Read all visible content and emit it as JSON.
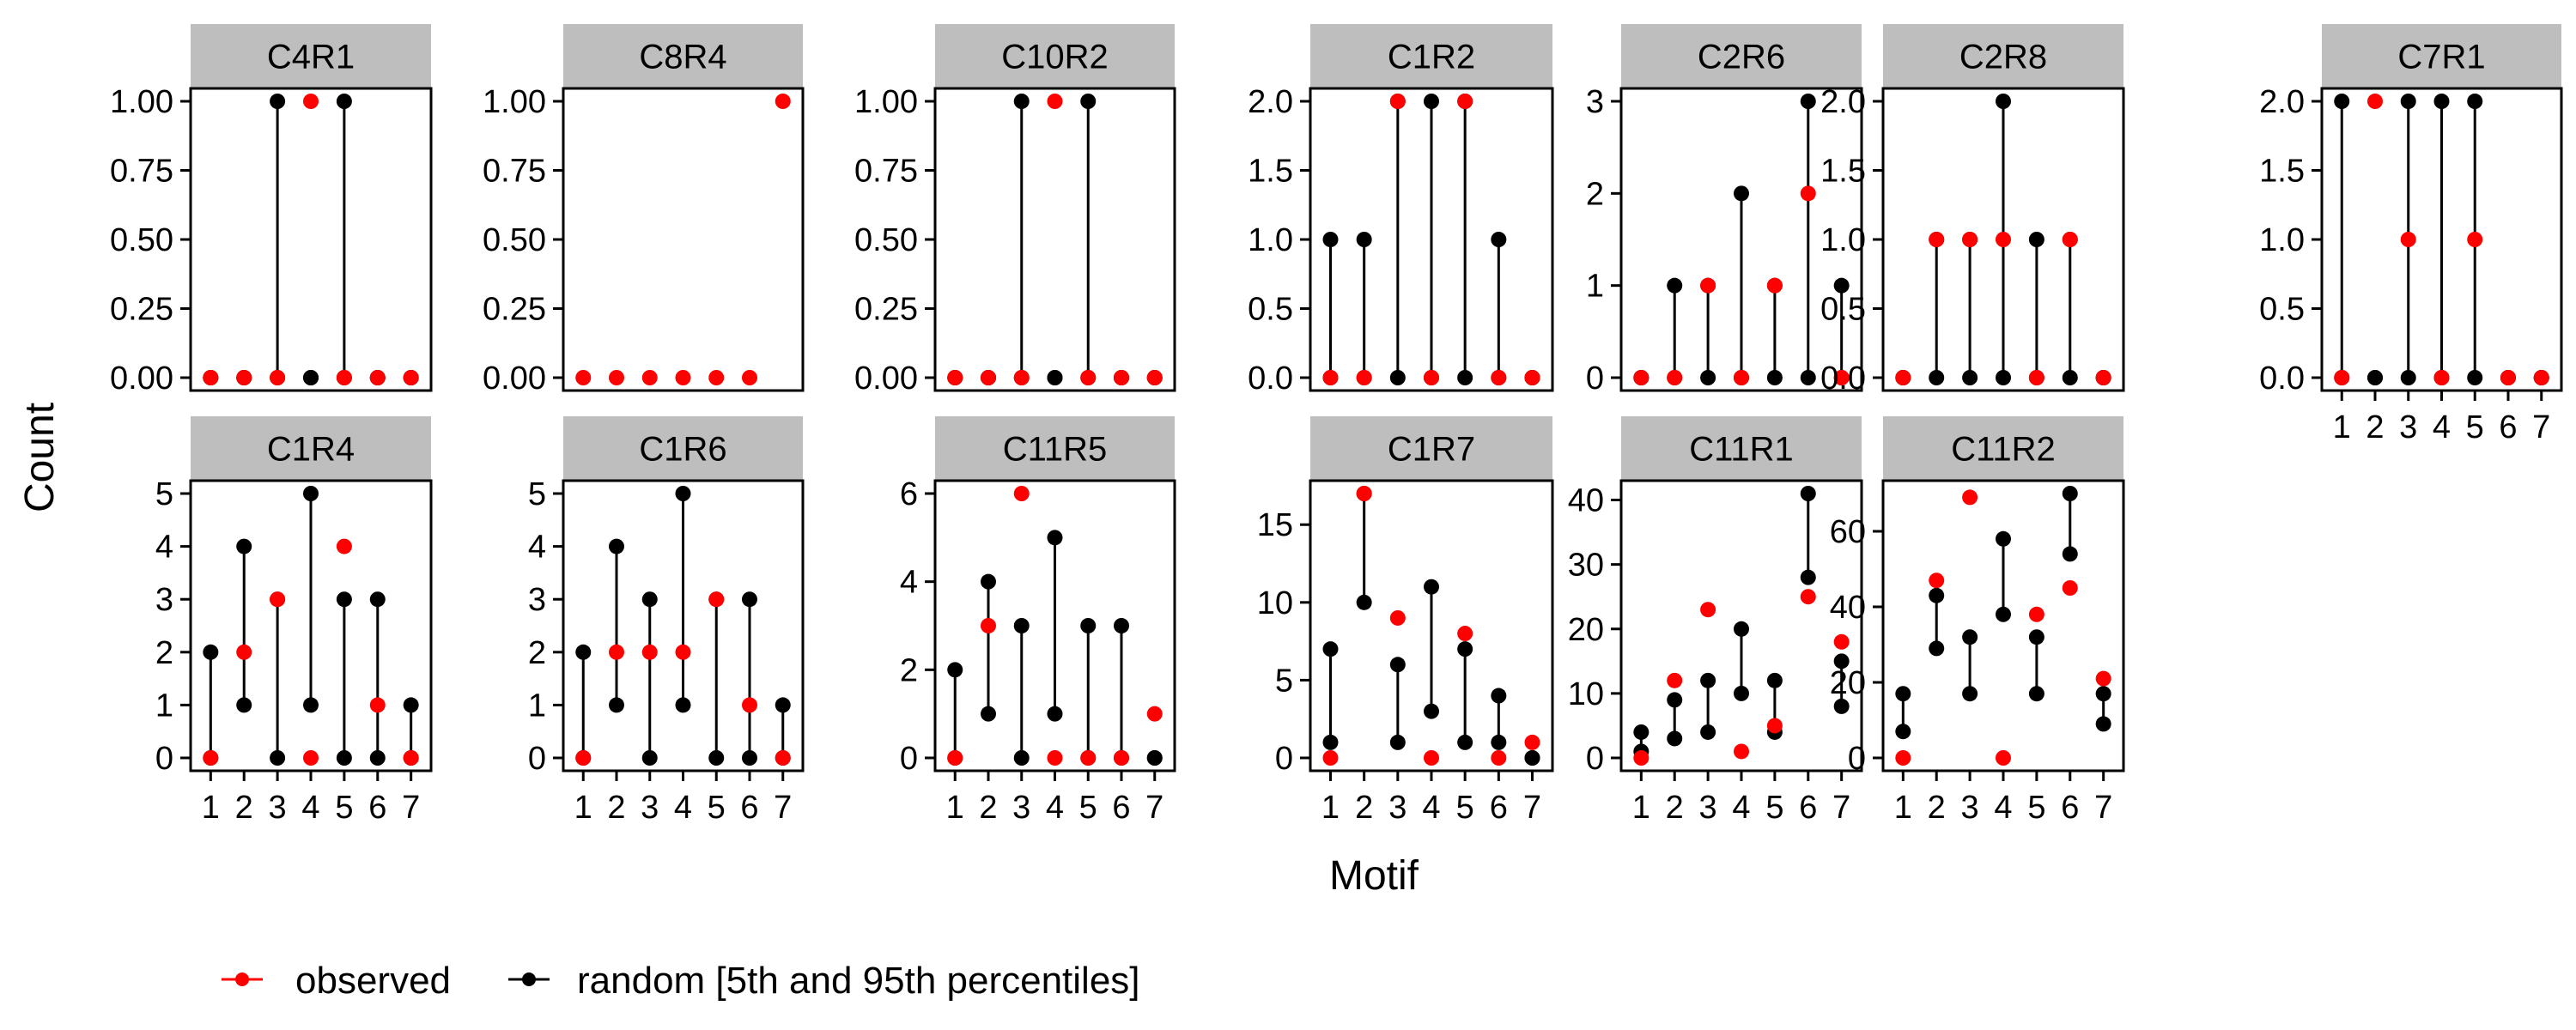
{
  "chart_data": {
    "type": "scatter",
    "ylabel": "Count",
    "xlabel": "Motif",
    "x_ticks": [
      "1",
      "2",
      "3",
      "4",
      "5",
      "6",
      "7"
    ],
    "legend": {
      "placement": "bottom-left",
      "items": [
        {
          "key": "observed",
          "label": "observed",
          "color": "#ff0000"
        },
        {
          "key": "random",
          "label": "random [5th and 95th percentiles]",
          "color": "#000000"
        }
      ]
    },
    "panels": [
      {
        "name": "C4R1",
        "row": 0,
        "col": 0,
        "ylim": [
          0,
          1
        ],
        "yticks": [
          "0.00",
          "0.25",
          "0.50",
          "0.75",
          "1.00"
        ],
        "show_x": false,
        "observed": [
          0,
          0,
          0,
          1,
          0,
          0,
          0
        ],
        "random_low": [
          0,
          0,
          0,
          0,
          0,
          0,
          0
        ],
        "random_high": [
          0,
          0,
          1,
          0,
          1,
          0,
          0
        ]
      },
      {
        "name": "C8R4",
        "row": 0,
        "col": 1,
        "ylim": [
          0,
          1
        ],
        "yticks": [
          "0.00",
          "0.25",
          "0.50",
          "0.75",
          "1.00"
        ],
        "show_x": false,
        "observed": [
          0,
          0,
          0,
          0,
          0,
          0,
          1
        ],
        "random_low": [
          null,
          null,
          null,
          null,
          null,
          null,
          null
        ],
        "random_high": [
          null,
          null,
          null,
          null,
          null,
          null,
          null
        ]
      },
      {
        "name": "C10R2",
        "row": 0,
        "col": 2,
        "ylim": [
          0,
          1
        ],
        "yticks": [
          "0.00",
          "0.25",
          "0.50",
          "0.75",
          "1.00"
        ],
        "show_x": false,
        "observed": [
          0,
          0,
          0,
          1,
          0,
          0,
          0
        ],
        "random_low": [
          0,
          0,
          0,
          0,
          0,
          0,
          0
        ],
        "random_high": [
          0,
          0,
          1,
          0,
          1,
          0,
          0
        ]
      },
      {
        "name": "C1R2",
        "row": 0,
        "col": 3,
        "ylim": [
          0,
          2
        ],
        "yticks": [
          "0.0",
          "0.5",
          "1.0",
          "1.5",
          "2.0"
        ],
        "show_x": false,
        "observed": [
          0,
          0,
          2,
          0,
          2,
          0,
          0
        ],
        "random_low": [
          0,
          0,
          0,
          0,
          0,
          0,
          0
        ],
        "random_high": [
          1,
          1,
          2,
          2,
          2,
          1,
          0
        ]
      },
      {
        "name": "C2R6",
        "row": 0,
        "col": 4,
        "ylim": [
          0,
          3
        ],
        "yticks": [
          "0",
          "1",
          "2",
          "3"
        ],
        "show_x": false,
        "observed": [
          0,
          0,
          1,
          0,
          1,
          2,
          0
        ],
        "random_low": [
          0,
          0,
          0,
          0,
          0,
          0,
          0
        ],
        "random_high": [
          0,
          1,
          1,
          2,
          1,
          3,
          1
        ]
      },
      {
        "name": "C2R8",
        "row": 0,
        "col": 5,
        "ylim": [
          0,
          2
        ],
        "yticks": [
          "0.0",
          "0.5",
          "1.0",
          "1.5",
          "2.0"
        ],
        "show_x": false,
        "observed": [
          0,
          1,
          1,
          1,
          0,
          1,
          0
        ],
        "random_low": [
          0,
          0,
          0,
          0,
          0,
          0,
          0
        ],
        "random_high": [
          0,
          1,
          1,
          2,
          1,
          1,
          0
        ]
      },
      {
        "name": "C7R1",
        "row": 0,
        "col": 6,
        "ylim": [
          0,
          2
        ],
        "yticks": [
          "0.0",
          "0.5",
          "1.0",
          "1.5",
          "2.0"
        ],
        "show_x": true,
        "observed": [
          0,
          2,
          1,
          0,
          1,
          0,
          0
        ],
        "random_low": [
          0,
          0,
          0,
          0,
          0,
          0,
          0
        ],
        "random_high": [
          2,
          0,
          2,
          2,
          2,
          0,
          0
        ]
      },
      {
        "name": "C1R4",
        "row": 1,
        "col": 0,
        "ylim": [
          0,
          5
        ],
        "yticks": [
          "0",
          "1",
          "2",
          "3",
          "4",
          "5"
        ],
        "show_x": true,
        "observed": [
          0,
          2,
          3,
          0,
          4,
          1,
          0
        ],
        "random_low": [
          0,
          1,
          0,
          1,
          0,
          0,
          0
        ],
        "random_high": [
          2,
          4,
          3,
          5,
          3,
          3,
          1
        ]
      },
      {
        "name": "C1R6",
        "row": 1,
        "col": 1,
        "ylim": [
          0,
          5
        ],
        "yticks": [
          "0",
          "1",
          "2",
          "3",
          "4",
          "5"
        ],
        "show_x": true,
        "observed": [
          0,
          2,
          2,
          2,
          3,
          1,
          0
        ],
        "random_low": [
          0,
          1,
          0,
          1,
          0,
          0,
          0
        ],
        "random_high": [
          2,
          4,
          3,
          5,
          3,
          3,
          1
        ]
      },
      {
        "name": "C11R5",
        "row": 1,
        "col": 2,
        "ylim": [
          0,
          6
        ],
        "yticks": [
          "0",
          "2",
          "4",
          "6"
        ],
        "show_x": true,
        "observed": [
          0,
          3,
          6,
          0,
          0,
          0,
          1
        ],
        "random_low": [
          0,
          1,
          0,
          1,
          0,
          0,
          0
        ],
        "random_high": [
          2,
          4,
          3,
          5,
          3,
          3,
          0
        ]
      },
      {
        "name": "C1R7",
        "row": 1,
        "col": 3,
        "ylim": [
          0,
          17
        ],
        "yticks": [
          "0",
          "5",
          "10",
          "15"
        ],
        "show_x": true,
        "observed": [
          0,
          17,
          9,
          0,
          8,
          0,
          1
        ],
        "random_low": [
          1,
          10,
          1,
          3,
          1,
          1,
          0
        ],
        "random_high": [
          7,
          17,
          6,
          11,
          7,
          4,
          0
        ]
      },
      {
        "name": "C11R1",
        "row": 1,
        "col": 4,
        "ylim": [
          0,
          41
        ],
        "yticks": [
          "0",
          "10",
          "20",
          "30",
          "40"
        ],
        "show_x": true,
        "observed": [
          0,
          12,
          23,
          1,
          5,
          25,
          18
        ],
        "random_low": [
          1,
          3,
          4,
          10,
          4,
          28,
          8
        ],
        "random_high": [
          4,
          9,
          12,
          20,
          12,
          41,
          15
        ]
      },
      {
        "name": "C11R2",
        "row": 1,
        "col": 5,
        "ylim": [
          0,
          70
        ],
        "yticks": [
          "0",
          "20",
          "40",
          "60"
        ],
        "show_x": true,
        "observed": [
          0,
          47,
          69,
          0,
          38,
          45,
          21
        ],
        "random_low": [
          7,
          29,
          17,
          38,
          17,
          54,
          9
        ],
        "random_high": [
          17,
          43,
          32,
          58,
          32,
          70,
          17
        ]
      }
    ]
  }
}
